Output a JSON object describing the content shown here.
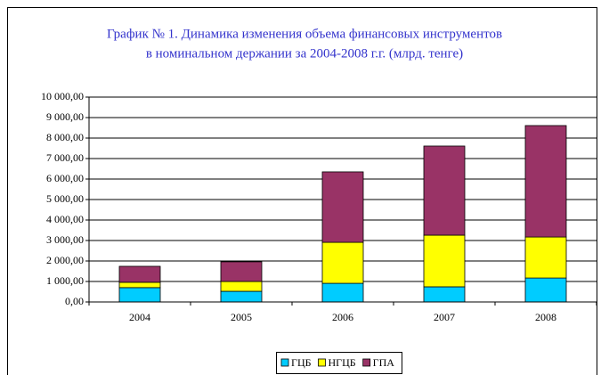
{
  "chart_data": {
    "type": "stacked_bar",
    "title": [
      "График № 1. Динамика изменения объема финансовых инструментов",
      "в номинальном держании за 2004-2008 г.г. (млрд. тенге)"
    ],
    "categories": [
      "2004",
      "2005",
      "2006",
      "2007",
      "2008"
    ],
    "series": [
      {
        "name": "ГЦБ",
        "color": "#00ccff",
        "values": [
          700,
          520,
          910,
          740,
          1170
        ]
      },
      {
        "name": "НГЦБ",
        "color": "#ffff00",
        "values": [
          260,
          480,
          2000,
          2520,
          2000
        ]
      },
      {
        "name": "ГПА",
        "color": "#993366",
        "values": [
          780,
          960,
          3440,
          4350,
          5440
        ]
      }
    ],
    "ylim": [
      0,
      10000
    ],
    "yticks": [
      {
        "value": 0,
        "label": "0,00"
      },
      {
        "value": 1000,
        "label": "1 000,00"
      },
      {
        "value": 2000,
        "label": "2 000,00"
      },
      {
        "value": 3000,
        "label": "3 000,00"
      },
      {
        "value": 4000,
        "label": "4 000,00"
      },
      {
        "value": 5000,
        "label": "5 000,00"
      },
      {
        "value": 6000,
        "label": "6 000,00"
      },
      {
        "value": 7000,
        "label": "7 000,00"
      },
      {
        "value": 8000,
        "label": "8 000,00"
      },
      {
        "value": 9000,
        "label": "9 000,00"
      },
      {
        "value": 10000,
        "label": "10 000,00"
      }
    ],
    "grid": true,
    "legend": "bottom"
  }
}
